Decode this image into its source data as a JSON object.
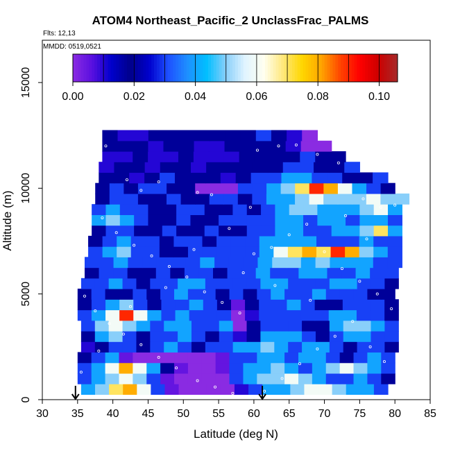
{
  "chart_data": {
    "type": "heatmap",
    "title": "ATOM4 Northeast_Pacific_2 UnclassFrac_PALMS",
    "flights_note": "Flts: 12,13",
    "dates_note": "MMDD: 0519,0521",
    "xlabel": "Latitude (deg N)",
    "ylabel": "Altitude (m)",
    "xlim": [
      30,
      85
    ],
    "ylim": [
      0,
      17000
    ],
    "x_ticks": [
      "30",
      "35",
      "40",
      "45",
      "50",
      "55",
      "60",
      "65",
      "70",
      "75",
      "80",
      "85"
    ],
    "x_tick_values": [
      30,
      35,
      40,
      45,
      50,
      55,
      60,
      65,
      70,
      75,
      80,
      85
    ],
    "y_ticks": [
      "0",
      "5000",
      "10000",
      "15000"
    ],
    "y_tick_values": [
      0,
      5000,
      10000,
      15000
    ],
    "grid": false,
    "colorbar": {
      "range": [
        0.0,
        0.106
      ],
      "tick_labels": [
        "0.00",
        "0.02",
        "0.04",
        "0.06",
        "0.08",
        "0.10"
      ],
      "tick_values": [
        0.0,
        0.02,
        0.04,
        0.06,
        0.08,
        0.1
      ],
      "colors": [
        "#8a2be2",
        "#5a10e0",
        "#0000cd",
        "#00008b",
        "#0000cd",
        "#1e50ff",
        "#1e90ff",
        "#00bfff",
        "#87cefa",
        "#e0f4ff",
        "#fffff0",
        "#ffe87c",
        "#ffd700",
        "#ffa500",
        "#ff4500",
        "#ff0000",
        "#cd0000",
        "#a52a2a"
      ]
    },
    "arrows_latitude": [
      34.7,
      61.2
    ],
    "curtain_rows": [
      {
        "z": 500,
        "lat_start": 35.5,
        "lat_end": 79.0,
        "values": [
          0.04,
          0.05,
          0.07,
          0.08,
          0.06,
          0.03,
          0.005,
          0.0,
          0.0,
          0.0,
          0.0,
          0.01,
          0.03,
          0.04,
          0.04,
          0.05,
          0.06,
          0.06,
          0.05,
          0.04,
          0.04,
          0.03
        ]
      },
      {
        "z": 1000,
        "lat_start": 35.0,
        "lat_end": 80.0,
        "values": [
          0.03,
          0.04,
          0.05,
          0.06,
          0.05,
          0.03,
          0.005,
          0.0,
          0.0,
          0.0,
          0.0,
          0.03,
          0.04,
          0.05,
          0.05,
          0.06,
          0.05,
          0.04,
          0.03,
          0.03,
          0.04,
          0.03,
          0.02
        ]
      },
      {
        "z": 1500,
        "lat_start": 35.0,
        "lat_end": 80.0,
        "values": [
          0.03,
          0.04,
          0.06,
          0.08,
          0.06,
          0.04,
          0.02,
          0.005,
          0.0,
          0.0,
          0.005,
          0.03,
          0.04,
          0.04,
          0.05,
          0.04,
          0.03,
          0.04,
          0.05,
          0.06,
          0.05,
          0.04,
          0.03
        ]
      },
      {
        "z": 2000,
        "lat_start": 35.0,
        "lat_end": 80.0,
        "values": [
          0.02,
          0.03,
          0.04,
          0.005,
          0.0,
          0.0,
          0.0,
          0.0,
          0.0,
          0.0,
          0.005,
          0.03,
          0.03,
          0.04,
          0.04,
          0.03,
          0.04,
          0.04,
          0.03,
          0.02,
          0.03,
          0.04,
          0.03
        ]
      },
      {
        "z": 2500,
        "lat_start": 35.5,
        "lat_end": 80.5,
        "values": [
          0.01,
          0.02,
          0.03,
          0.03,
          0.02,
          0.03,
          0.04,
          0.03,
          0.02,
          0.03,
          0.03,
          0.04,
          0.04,
          0.05,
          0.04,
          0.03,
          0.04,
          0.04,
          0.03,
          0.02,
          0.03,
          0.03,
          0.02
        ]
      },
      {
        "z": 3000,
        "lat_start": 35.5,
        "lat_end": 80.5,
        "values": [
          0.02,
          0.04,
          0.05,
          0.03,
          0.02,
          0.03,
          0.03,
          0.04,
          0.03,
          0.02,
          0.03,
          0.01,
          0.02,
          0.04,
          0.04,
          0.04,
          0.03,
          0.02,
          0.03,
          0.04,
          0.04,
          0.03,
          0.03
        ]
      },
      {
        "z": 3500,
        "lat_start": 35.5,
        "lat_end": 80.5,
        "values": [
          0.03,
          0.05,
          0.06,
          0.05,
          0.04,
          0.03,
          0.04,
          0.04,
          0.03,
          0.03,
          0.04,
          0.0,
          0.02,
          0.03,
          0.03,
          0.03,
          0.02,
          0.02,
          0.04,
          0.05,
          0.05,
          0.04,
          0.03
        ]
      },
      {
        "z": 4000,
        "lat_start": 35.0,
        "lat_end": 80.5,
        "values": [
          0.03,
          0.04,
          0.06,
          0.09,
          0.06,
          0.04,
          0.03,
          0.04,
          0.03,
          0.03,
          0.03,
          0.0,
          0.01,
          0.03,
          0.03,
          0.03,
          0.03,
          0.03,
          0.04,
          0.04,
          0.03,
          0.03,
          0.02
        ]
      },
      {
        "z": 4500,
        "lat_start": 35.0,
        "lat_end": 80.5,
        "values": [
          0.02,
          0.03,
          0.04,
          0.05,
          0.03,
          0.02,
          0.03,
          0.03,
          0.04,
          0.03,
          0.02,
          0.005,
          0.02,
          0.03,
          0.03,
          0.04,
          0.03,
          0.02,
          0.02,
          0.03,
          0.03,
          0.03,
          0.02
        ]
      },
      {
        "z": 5000,
        "lat_start": 35.0,
        "lat_end": 80.0,
        "values": [
          0.02,
          0.03,
          0.02,
          0.02,
          0.03,
          0.02,
          0.03,
          0.04,
          0.03,
          0.03,
          0.02,
          0.03,
          0.02,
          0.03,
          0.04,
          0.03,
          0.03,
          0.04,
          0.03,
          0.03,
          0.03,
          0.02,
          0.02
        ]
      },
      {
        "z": 5500,
        "lat_start": 35.5,
        "lat_end": 80.5,
        "values": [
          0.03,
          0.03,
          0.04,
          0.03,
          0.02,
          0.03,
          0.03,
          0.04,
          0.04,
          0.03,
          0.03,
          0.03,
          0.03,
          0.04,
          0.04,
          0.03,
          0.03,
          0.03,
          0.04,
          0.04,
          0.03,
          0.03,
          0.02
        ]
      },
      {
        "z": 6000,
        "lat_start": 36.0,
        "lat_end": 80.5,
        "values": [
          0.02,
          0.03,
          0.03,
          0.02,
          0.02,
          0.03,
          0.02,
          0.03,
          0.03,
          0.02,
          0.03,
          0.03,
          0.04,
          0.03,
          0.03,
          0.04,
          0.04,
          0.03,
          0.03,
          0.04,
          0.03,
          0.03
        ]
      },
      {
        "z": 6500,
        "lat_start": 36.0,
        "lat_end": 81.0,
        "values": [
          0.03,
          0.03,
          0.04,
          0.03,
          0.03,
          0.03,
          0.03,
          0.03,
          0.04,
          0.03,
          0.03,
          0.03,
          0.04,
          0.05,
          0.05,
          0.04,
          0.05,
          0.04,
          0.04,
          0.04,
          0.03,
          0.03
        ]
      },
      {
        "z": 7000,
        "lat_start": 36.5,
        "lat_end": 81.0,
        "values": [
          0.03,
          0.04,
          0.05,
          0.03,
          0.03,
          0.02,
          0.02,
          0.03,
          0.03,
          0.03,
          0.03,
          0.03,
          0.04,
          0.06,
          0.07,
          0.08,
          0.07,
          0.09,
          0.08,
          0.05,
          0.04,
          0.03
        ]
      },
      {
        "z": 7500,
        "lat_start": 36.5,
        "lat_end": 81.0,
        "values": [
          0.02,
          0.03,
          0.04,
          0.03,
          0.03,
          0.02,
          0.03,
          0.03,
          0.02,
          0.03,
          0.03,
          0.03,
          0.04,
          0.04,
          0.04,
          0.04,
          0.03,
          0.03,
          0.03,
          0.04,
          0.03,
          0.03
        ]
      },
      {
        "z": 8000,
        "lat_start": 37.0,
        "lat_end": 81.0,
        "values": [
          0.02,
          0.03,
          0.03,
          0.02,
          0.02,
          0.03,
          0.02,
          0.02,
          0.03,
          0.02,
          0.02,
          0.03,
          0.03,
          0.04,
          0.04,
          0.03,
          0.03,
          0.04,
          0.04,
          0.05,
          0.07,
          0.04
        ]
      },
      {
        "z": 8500,
        "lat_start": 37.0,
        "lat_end": 81.0,
        "values": [
          0.04,
          0.05,
          0.04,
          0.03,
          0.02,
          0.02,
          0.03,
          0.02,
          0.02,
          0.03,
          0.03,
          0.03,
          0.03,
          0.04,
          0.04,
          0.03,
          0.04,
          0.04,
          0.03,
          0.04,
          0.04,
          0.03
        ]
      },
      {
        "z": 9000,
        "lat_start": 37.0,
        "lat_end": 81.0,
        "values": [
          0.03,
          0.04,
          0.03,
          0.03,
          0.02,
          0.02,
          0.03,
          0.03,
          0.02,
          0.02,
          0.03,
          0.02,
          0.03,
          0.04,
          0.05,
          0.05,
          0.04,
          0.04,
          0.04,
          0.05,
          0.06,
          0.04
        ]
      },
      {
        "z": 9500,
        "lat_start": 37.5,
        "lat_end": 82.0,
        "values": [
          0.02,
          0.03,
          0.03,
          0.02,
          0.02,
          0.03,
          0.02,
          0.02,
          0.03,
          0.03,
          0.02,
          0.03,
          0.04,
          0.04,
          0.05,
          0.06,
          0.05,
          0.05,
          0.05,
          0.06,
          0.05,
          0.05
        ]
      },
      {
        "z": 10000,
        "lat_start": 37.5,
        "lat_end": 80.0,
        "values": [
          0.02,
          0.03,
          0.02,
          0.03,
          0.03,
          0.02,
          0.02,
          0.0,
          0.0,
          0.0,
          0.03,
          0.03,
          0.04,
          0.05,
          0.07,
          0.09,
          0.08,
          0.06,
          0.04,
          0.03,
          0.02
        ]
      },
      {
        "z": 10500,
        "lat_start": 38.0,
        "lat_end": 79.0,
        "values": [
          0.02,
          0.02,
          0.01,
          0.02,
          0.03,
          0.02,
          0.02,
          0.02,
          0.01,
          0.02,
          0.03,
          0.03,
          0.04,
          0.04,
          0.03,
          0.03,
          0.02,
          0.02,
          0.03
        ]
      },
      {
        "z": 11000,
        "lat_start": 38.0,
        "lat_end": 75.0,
        "values": [
          0.01,
          0.02,
          0.02,
          0.01,
          0.02,
          0.02,
          0.01,
          0.02,
          0.02,
          0.02,
          0.02,
          0.02,
          0.03,
          0.03,
          0.02,
          0.02,
          0.03
        ]
      },
      {
        "z": 11500,
        "lat_start": 38.5,
        "lat_end": 73.0,
        "values": [
          0.01,
          0.01,
          0.02,
          0.01,
          0.01,
          0.02,
          0.01,
          0.01,
          0.01,
          0.02,
          0.02,
          0.02,
          0.02,
          0.03,
          0.02,
          0.02
        ]
      },
      {
        "z": 12000,
        "lat_start": 38.5,
        "lat_end": 71.0,
        "values": [
          0.02,
          0.02,
          0.02,
          0.01,
          0.02,
          0.02,
          0.01,
          0.01,
          0.02,
          0.02,
          0.02,
          0.02,
          0.01,
          0.0,
          0.0
        ]
      },
      {
        "z": 12500,
        "lat_start": 38.5,
        "lat_end": 69.0,
        "values": [
          0.02,
          0.01,
          0.01,
          0.02,
          0.02,
          0.02,
          0.02,
          0.02,
          0.02,
          0.02,
          0.03,
          0.02,
          0.01,
          0.0
        ]
      }
    ],
    "sample_points": [
      [
        39.0,
        12000
      ],
      [
        42.0,
        10400
      ],
      [
        44.0,
        9900
      ],
      [
        46.5,
        10300
      ],
      [
        52.0,
        9800
      ],
      [
        54.0,
        9700
      ],
      [
        59.5,
        9100
      ],
      [
        60.5,
        11800
      ],
      [
        63.5,
        12000
      ],
      [
        66.0,
        12050
      ],
      [
        69.0,
        11600
      ],
      [
        72.0,
        11200
      ],
      [
        75.5,
        9500
      ],
      [
        78.0,
        9100
      ],
      [
        38.5,
        8600
      ],
      [
        40.5,
        7900
      ],
      [
        43.0,
        7300
      ],
      [
        45.5,
        6800
      ],
      [
        48.0,
        6300
      ],
      [
        50.5,
        5800
      ],
      [
        53.0,
        5100
      ],
      [
        55.5,
        4600
      ],
      [
        58.0,
        4100
      ],
      [
        60.0,
        6900
      ],
      [
        62.5,
        7200
      ],
      [
        65.0,
        7800
      ],
      [
        67.5,
        8300
      ],
      [
        70.0,
        7000
      ],
      [
        72.5,
        6200
      ],
      [
        75.0,
        5600
      ],
      [
        77.5,
        5000
      ],
      [
        79.5,
        4300
      ],
      [
        36.0,
        4900
      ],
      [
        37.5,
        4200
      ],
      [
        39.5,
        3600
      ],
      [
        41.5,
        3100
      ],
      [
        44.0,
        2600
      ],
      [
        46.5,
        2000
      ],
      [
        49.0,
        1500
      ],
      [
        52.0,
        900
      ],
      [
        54.5,
        600
      ],
      [
        57.0,
        300
      ],
      [
        61.5,
        400
      ],
      [
        64.0,
        1000
      ],
      [
        66.5,
        1700
      ],
      [
        69.0,
        2400
      ],
      [
        71.5,
        3000
      ],
      [
        74.0,
        3700
      ],
      [
        76.5,
        2500
      ],
      [
        78.5,
        1800
      ],
      [
        79.5,
        600
      ],
      [
        35.5,
        1300
      ],
      [
        38.0,
        2300
      ],
      [
        42.5,
        4400
      ],
      [
        47.5,
        5300
      ],
      [
        51.5,
        7100
      ],
      [
        56.5,
        8100
      ],
      [
        58.5,
        6000
      ],
      [
        63.0,
        5400
      ],
      [
        68.0,
        4700
      ],
      [
        73.0,
        8700
      ],
      [
        76.0,
        7600
      ],
      [
        80.0,
        9200
      ]
    ]
  }
}
